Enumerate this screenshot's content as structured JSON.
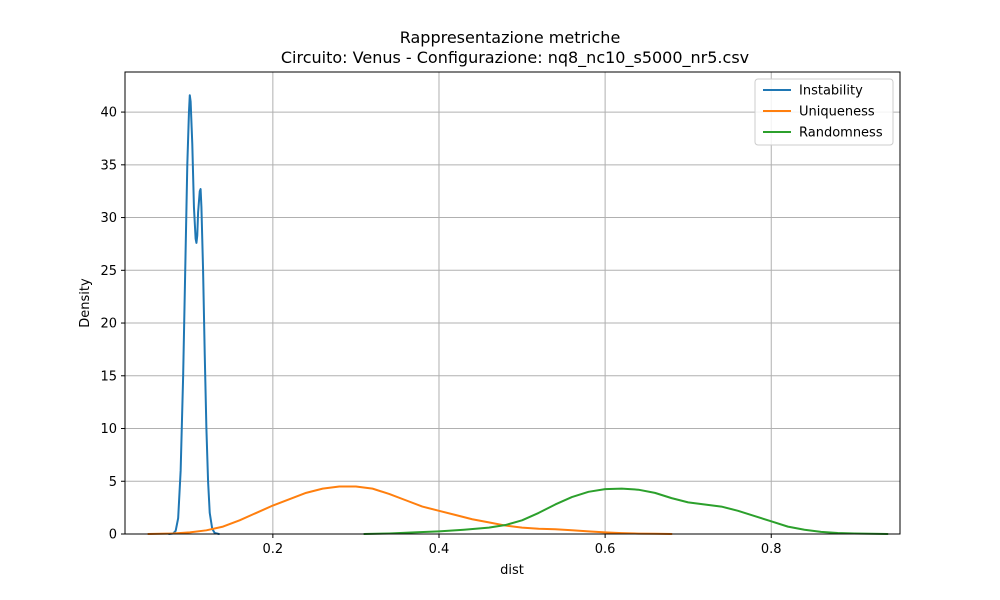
{
  "chart_data": {
    "type": "line",
    "title_line1": "Rappresentazione metriche",
    "title_line2": "Circuito: Venus - Configurazione: nq8_nc10_s5000_nr5.csv",
    "xlabel": "dist",
    "ylabel": "Density",
    "xlim": [
      0.022,
      0.955
    ],
    "ylim": [
      0,
      43.8
    ],
    "xticks": [
      0.2,
      0.4,
      0.6,
      0.8
    ],
    "xtick_labels": [
      "0.2",
      "0.4",
      "0.6",
      "0.8"
    ],
    "yticks": [
      0,
      5,
      10,
      15,
      20,
      25,
      30,
      35,
      40
    ],
    "ytick_labels": [
      "0",
      "5",
      "10",
      "15",
      "20",
      "25",
      "30",
      "35",
      "40"
    ],
    "grid": true,
    "legend_position": "top-right",
    "series": [
      {
        "name": "Instability",
        "color": "#1f77b4",
        "points": [
          [
            0.075,
            0
          ],
          [
            0.08,
            0.05
          ],
          [
            0.083,
            0.3
          ],
          [
            0.086,
            1.5
          ],
          [
            0.089,
            6
          ],
          [
            0.092,
            15
          ],
          [
            0.095,
            27
          ],
          [
            0.097,
            35
          ],
          [
            0.099,
            40
          ],
          [
            0.1,
            41.6
          ],
          [
            0.101,
            41
          ],
          [
            0.103,
            37
          ],
          [
            0.105,
            31
          ],
          [
            0.107,
            28
          ],
          [
            0.108,
            27.6
          ],
          [
            0.109,
            28.3
          ],
          [
            0.11,
            30.5
          ],
          [
            0.112,
            32.5
          ],
          [
            0.113,
            32.7
          ],
          [
            0.114,
            31
          ],
          [
            0.116,
            25
          ],
          [
            0.118,
            17
          ],
          [
            0.12,
            10
          ],
          [
            0.122,
            5
          ],
          [
            0.124,
            2
          ],
          [
            0.127,
            0.5
          ],
          [
            0.13,
            0.1
          ],
          [
            0.135,
            0
          ]
        ]
      },
      {
        "name": "Uniqueness",
        "color": "#ff7f0e",
        "points": [
          [
            0.05,
            0
          ],
          [
            0.08,
            0.05
          ],
          [
            0.1,
            0.15
          ],
          [
            0.12,
            0.35
          ],
          [
            0.14,
            0.7
          ],
          [
            0.16,
            1.3
          ],
          [
            0.18,
            2
          ],
          [
            0.2,
            2.7
          ],
          [
            0.22,
            3.3
          ],
          [
            0.24,
            3.9
          ],
          [
            0.26,
            4.3
          ],
          [
            0.28,
            4.5
          ],
          [
            0.3,
            4.5
          ],
          [
            0.32,
            4.3
          ],
          [
            0.34,
            3.8
          ],
          [
            0.36,
            3.2
          ],
          [
            0.38,
            2.6
          ],
          [
            0.4,
            2.2
          ],
          [
            0.42,
            1.8
          ],
          [
            0.44,
            1.4
          ],
          [
            0.46,
            1.1
          ],
          [
            0.48,
            0.8
          ],
          [
            0.5,
            0.6
          ],
          [
            0.52,
            0.5
          ],
          [
            0.54,
            0.45
          ],
          [
            0.56,
            0.35
          ],
          [
            0.58,
            0.25
          ],
          [
            0.6,
            0.15
          ],
          [
            0.62,
            0.08
          ],
          [
            0.64,
            0.04
          ],
          [
            0.66,
            0.02
          ],
          [
            0.68,
            0
          ]
        ]
      },
      {
        "name": "Randomness",
        "color": "#2ca02c",
        "points": [
          [
            0.31,
            0
          ],
          [
            0.34,
            0.05
          ],
          [
            0.37,
            0.15
          ],
          [
            0.4,
            0.25
          ],
          [
            0.43,
            0.4
          ],
          [
            0.46,
            0.6
          ],
          [
            0.48,
            0.85
          ],
          [
            0.5,
            1.3
          ],
          [
            0.52,
            2
          ],
          [
            0.54,
            2.8
          ],
          [
            0.56,
            3.5
          ],
          [
            0.58,
            4
          ],
          [
            0.6,
            4.25
          ],
          [
            0.62,
            4.3
          ],
          [
            0.64,
            4.2
          ],
          [
            0.66,
            3.9
          ],
          [
            0.68,
            3.4
          ],
          [
            0.7,
            3
          ],
          [
            0.72,
            2.8
          ],
          [
            0.74,
            2.6
          ],
          [
            0.76,
            2.2
          ],
          [
            0.78,
            1.7
          ],
          [
            0.8,
            1.2
          ],
          [
            0.82,
            0.7
          ],
          [
            0.84,
            0.4
          ],
          [
            0.86,
            0.2
          ],
          [
            0.88,
            0.1
          ],
          [
            0.9,
            0.05
          ],
          [
            0.94,
            0
          ]
        ]
      }
    ]
  }
}
